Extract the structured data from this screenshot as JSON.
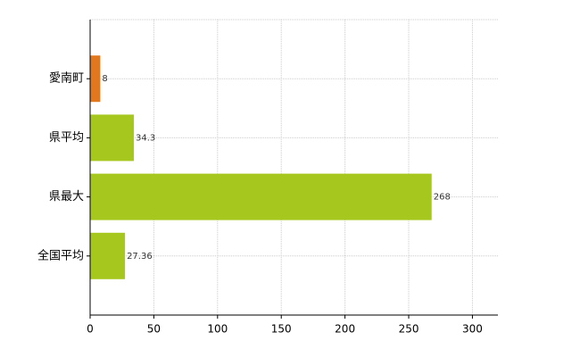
{
  "chart_data": {
    "type": "hbar",
    "categories": [
      "愛南町",
      "県平均",
      "県最大",
      "全国平均"
    ],
    "values": [
      8,
      34.3,
      268,
      27.36
    ],
    "colors": [
      "#e2781e",
      "#a6c81e",
      "#a6c81e",
      "#a6c81e"
    ],
    "xlim": [
      0,
      320
    ],
    "xticks": [
      0,
      50,
      100,
      150,
      200,
      250,
      300
    ],
    "grid": true
  }
}
